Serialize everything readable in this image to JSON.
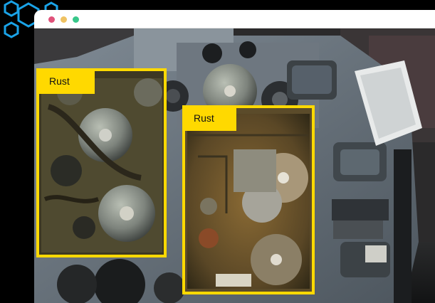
{
  "colors": {
    "window_dot_red": "#e0527a",
    "window_dot_yellow": "#efc262",
    "window_dot_green": "#38c78a",
    "bbox": "#ffd900",
    "logo_outline": "#1aa3e8"
  },
  "icons": {
    "logo": "hexagon-cluster-icon"
  },
  "detections": [
    {
      "label": "Rust"
    },
    {
      "label": "Rust"
    }
  ]
}
